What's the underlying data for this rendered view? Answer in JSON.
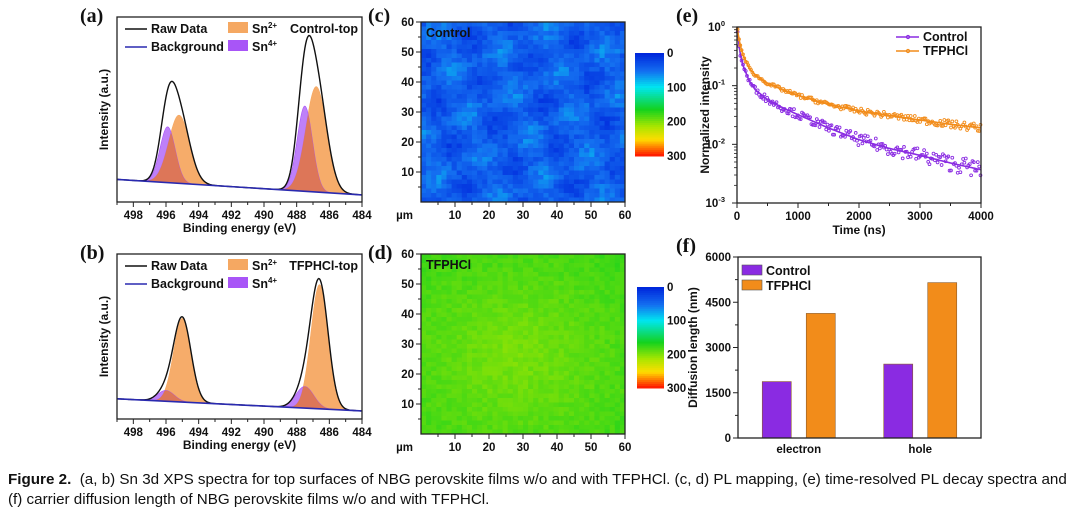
{
  "figure": {
    "caption_label": "Figure 2.",
    "caption_text": "(a, b) Sn 3d XPS spectra for top surfaces of NBG perovskite films w/o and with TFPHCl. (c, d) PL mapping, (e) time-resolved PL decay spectra and (f) carrier diffusion length of NBG perovskite films w/o and with TFPHCl."
  },
  "colors": {
    "raw": "#111111",
    "background_line": "#2a2ab0",
    "sn2": "#f5a862",
    "sn4": "#a855f7",
    "overlap": "#e0784a",
    "control": "#8a2be2",
    "tfphcl": "#f28c1a"
  },
  "chart_data": [
    {
      "panel": "(a)",
      "type": "line",
      "title": "Control-top",
      "xlabel": "Binding energy (eV)",
      "ylabel": "Intensity (a.u.)",
      "xlim": [
        499,
        484
      ],
      "xticks": [
        498,
        496,
        494,
        492,
        490,
        488,
        486,
        484
      ],
      "legend": [
        {
          "name": "Raw Data",
          "kind": "line"
        },
        {
          "name": "Background",
          "kind": "line"
        },
        {
          "name": "Sn2+",
          "base": "Sn",
          "sup": "2+",
          "kind": "fill"
        },
        {
          "name": "Sn4+",
          "base": "Sn",
          "sup": "4+",
          "kind": "fill"
        }
      ],
      "background": {
        "start": 0.12,
        "end": 0.02
      },
      "peaks": [
        {
          "component": "Sn2+",
          "center": 495.2,
          "fwhm": 1.5,
          "height": 0.44
        },
        {
          "component": "Sn4+",
          "center": 495.9,
          "fwhm": 1.1,
          "height": 0.36
        },
        {
          "component": "Sn2+",
          "center": 486.8,
          "fwhm": 1.5,
          "height": 0.68
        },
        {
          "component": "Sn4+",
          "center": 487.5,
          "fwhm": 1.1,
          "height": 0.55
        }
      ]
    },
    {
      "panel": "(b)",
      "type": "line",
      "title": "TFPHCl-top",
      "xlabel": "Binding energy (eV)",
      "ylabel": "Intensity (a.u.)",
      "xlim": [
        499,
        484
      ],
      "xticks": [
        498,
        496,
        494,
        492,
        490,
        488,
        486,
        484
      ],
      "legend": [
        {
          "name": "Raw Data",
          "kind": "line"
        },
        {
          "name": "Background",
          "kind": "line"
        },
        {
          "name": "Sn2+",
          "base": "Sn",
          "sup": "2+",
          "kind": "fill"
        },
        {
          "name": "Sn4+",
          "base": "Sn",
          "sup": "4+",
          "kind": "fill"
        }
      ],
      "background": {
        "start": 0.12,
        "end": 0.03
      },
      "peaks": [
        {
          "component": "Sn2+",
          "center": 495.0,
          "fwhm": 1.25,
          "height": 0.62
        },
        {
          "component": "Sn4+",
          "center": 496.0,
          "fwhm": 1.2,
          "height": 0.08
        },
        {
          "component": "Sn2+",
          "center": 486.6,
          "fwhm": 1.25,
          "height": 0.92
        },
        {
          "component": "Sn4+",
          "center": 487.5,
          "fwhm": 1.3,
          "height": 0.16
        }
      ]
    },
    {
      "panel": "(c)",
      "type": "heatmap",
      "title": "Control",
      "xlabel": "µm",
      "xlim": [
        0,
        60
      ],
      "ylim": [
        0,
        60
      ],
      "xticks": [
        10,
        20,
        30,
        40,
        50,
        60
      ],
      "yticks": [
        10,
        20,
        30,
        40,
        50,
        60
      ],
      "colorbar": {
        "ticks": [
          0,
          100,
          200,
          300
        ],
        "range": [
          0,
          300
        ]
      },
      "mean_value": 40,
      "variation": 25
    },
    {
      "panel": "(d)",
      "type": "heatmap",
      "title": "TFPHCl",
      "xlabel": "µm",
      "xlim": [
        0,
        60
      ],
      "ylim": [
        0,
        60
      ],
      "xticks": [
        10,
        20,
        30,
        40,
        50,
        60
      ],
      "yticks": [
        10,
        20,
        30,
        40,
        50,
        60
      ],
      "colorbar": {
        "ticks": [
          0,
          100,
          200,
          300
        ],
        "range": [
          0,
          300
        ]
      },
      "mean_value": 200,
      "variation": 12
    },
    {
      "panel": "(e)",
      "type": "scatter",
      "xlabel": "Time (ns)",
      "ylabel": "Normalized intensity",
      "xlim": [
        0,
        4000
      ],
      "ylim": [
        0.001,
        1
      ],
      "yscale": "log",
      "xticks": [
        0,
        1000,
        2000,
        3000,
        4000
      ],
      "yticks": [
        {
          "base": "10",
          "exp": "0"
        },
        {
          "base": "10",
          "exp": "-1"
        },
        {
          "base": "10",
          "exp": "-2"
        },
        {
          "base": "10",
          "exp": "-3"
        }
      ],
      "legend_position": "top-right",
      "series": [
        {
          "name": "Control",
          "x": [
            0,
            50,
            100,
            200,
            300,
            500,
            750,
            1000,
            1500,
            2000,
            2500,
            3000,
            3500,
            4000
          ],
          "y": [
            1.0,
            0.35,
            0.22,
            0.12,
            0.085,
            0.058,
            0.042,
            0.032,
            0.019,
            0.012,
            0.0085,
            0.0065,
            0.0048,
            0.0037
          ]
        },
        {
          "name": "TFPHCl",
          "x": [
            0,
            50,
            100,
            200,
            300,
            500,
            750,
            1000,
            1500,
            2000,
            2500,
            3000,
            3500,
            4000
          ],
          "y": [
            1.0,
            0.5,
            0.33,
            0.2,
            0.15,
            0.11,
            0.085,
            0.068,
            0.048,
            0.037,
            0.031,
            0.026,
            0.022,
            0.019
          ]
        }
      ]
    },
    {
      "panel": "(f)",
      "type": "bar",
      "xlabel": "",
      "ylabel": "Diffusion length (nm)",
      "ylim": [
        0,
        6000
      ],
      "yticks": [
        0,
        1500,
        3000,
        4500,
        6000
      ],
      "categories": [
        "electron",
        "hole"
      ],
      "legend_position": "top-left",
      "series": [
        {
          "name": "Control",
          "values": [
            1870,
            2450
          ]
        },
        {
          "name": "TFPHCl",
          "values": [
            4130,
            5150
          ]
        }
      ]
    }
  ]
}
